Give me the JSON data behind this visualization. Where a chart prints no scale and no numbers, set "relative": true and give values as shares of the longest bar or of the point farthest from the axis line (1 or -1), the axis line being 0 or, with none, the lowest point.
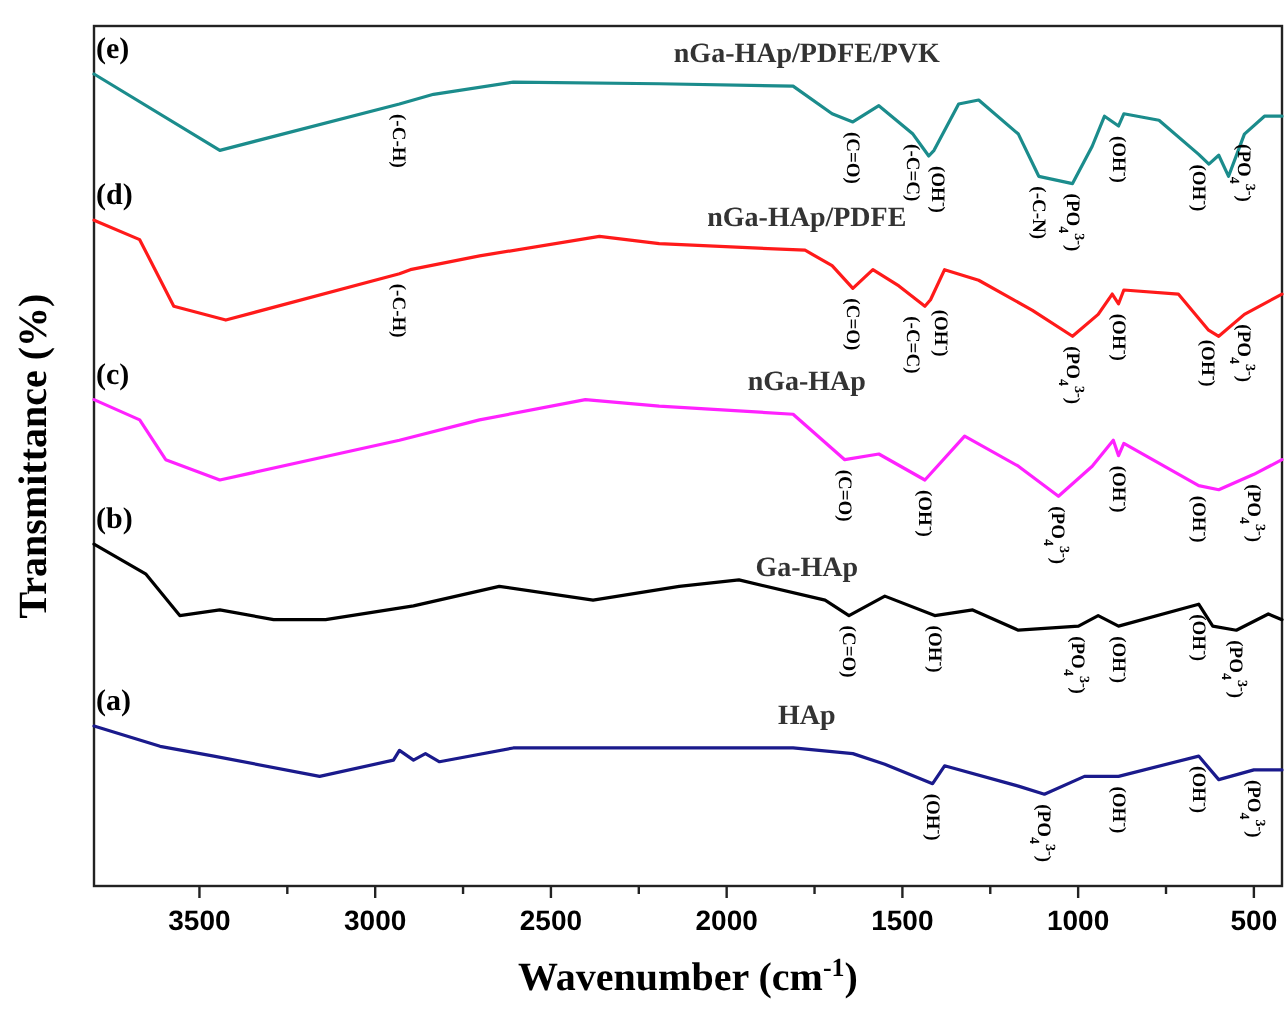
{
  "chart_data": {
    "type": "line",
    "relative": true,
    "xlabel": "Wavenumber (cm$^{-1}$)",
    "ylabel": "Transmittance (%)",
    "xlim": [
      3800,
      420
    ],
    "xticks": [
      3500,
      3000,
      2500,
      2000,
      1500,
      1000,
      500,
      {
        "value": 3250,
        "label": null
      },
      {
        "value": 2750,
        "label": null
      },
      {
        "value": 2250,
        "label": null
      },
      {
        "value": 1750,
        "label": null
      },
      {
        "value": 1250,
        "label": null
      },
      {
        "value": 750,
        "label": null
      }
    ],
    "grid": false,
    "legend": false,
    "marker": "none",
    "line_style": "solid",
    "series": [
      {
        "name": "nGa-HAp/PDFE/PVK",
        "color": "#1b8c8c",
        "x": [
          3800,
          3442,
          2931,
          2834,
          2607,
          2192,
          1811,
          1700,
          1641,
          1567,
          1470,
          1425,
          1410,
          1340,
          1283,
          1170,
          1112,
          1016,
          960,
          925,
          885,
          870,
          770,
          657,
          628,
          600,
          572,
          527,
          470,
          420
        ],
        "values": [
          1.0,
          0.906,
          0.963,
          0.975,
          0.99,
          0.988,
          0.985,
          0.951,
          0.941,
          0.961,
          0.926,
          0.899,
          0.906,
          0.963,
          0.968,
          0.926,
          0.874,
          0.865,
          0.911,
          0.948,
          0.936,
          0.951,
          0.943,
          0.901,
          0.889,
          0.9,
          0.874,
          0.926,
          0.948,
          0.948
        ]
      },
      {
        "name": "nGa-HAp/PDFE",
        "color": "#ff1a1a",
        "x": [
          3800,
          3670,
          3573,
          3425,
          2931,
          2900,
          2703,
          2362,
          2192,
          1777,
          1700,
          1641,
          1584,
          1510,
          1436,
          1420,
          1380,
          1283,
          1130,
          1016,
          943,
          903,
          885,
          870,
          715,
          630,
          600,
          527,
          420
        ],
        "values": [
          0.82,
          0.796,
          0.714,
          0.697,
          0.754,
          0.759,
          0.776,
          0.8,
          0.791,
          0.783,
          0.764,
          0.736,
          0.759,
          0.739,
          0.714,
          0.722,
          0.759,
          0.746,
          0.709,
          0.677,
          0.704,
          0.729,
          0.717,
          0.734,
          0.729,
          0.685,
          0.677,
          0.704,
          0.729
        ]
      },
      {
        "name": "nGa-HAp",
        "color": "#ff22ff",
        "x": [
          3800,
          3670,
          3596,
          3442,
          2931,
          2703,
          2402,
          2192,
          1811,
          1664,
          1567,
          1436,
          1323,
          1170,
          1056,
          960,
          900,
          885,
          870,
          657,
          600,
          500,
          420
        ],
        "values": [
          0.599,
          0.574,
          0.525,
          0.5,
          0.549,
          0.574,
          0.599,
          0.591,
          0.581,
          0.525,
          0.532,
          0.5,
          0.554,
          0.517,
          0.48,
          0.517,
          0.549,
          0.53,
          0.545,
          0.493,
          0.488,
          0.507,
          0.525
        ]
      },
      {
        "name": "Ga-HAp",
        "color": "#000000",
        "x": [
          3800,
          3652,
          3556,
          3442,
          3289,
          3141,
          2891,
          2647,
          2380,
          2135,
          1965,
          1720,
          1652,
          1550,
          1408,
          1300,
          1170,
          999,
          943,
          885,
          657,
          617,
          550,
          459,
          420
        ],
        "values": [
          0.421,
          0.384,
          0.333,
          0.34,
          0.328,
          0.328,
          0.345,
          0.369,
          0.352,
          0.369,
          0.377,
          0.352,
          0.333,
          0.357,
          0.333,
          0.34,
          0.315,
          0.32,
          0.333,
          0.32,
          0.347,
          0.32,
          0.315,
          0.335,
          0.328
        ]
      },
      {
        "name": "HAp",
        "color": "#1a1a8c",
        "x": [
          3800,
          3612,
          3459,
          3158,
          2948,
          2931,
          2891,
          2857,
          2817,
          2607,
          2135,
          1811,
          1641,
          1550,
          1414,
          1380,
          1170,
          1096,
          982,
          885,
          657,
          600,
          500,
          420
        ],
        "values": [
          0.197,
          0.172,
          0.16,
          0.135,
          0.155,
          0.167,
          0.155,
          0.163,
          0.153,
          0.17,
          0.17,
          0.17,
          0.163,
          0.15,
          0.126,
          0.148,
          0.123,
          0.113,
          0.135,
          0.135,
          0.16,
          0.131,
          0.143,
          0.143
        ]
      }
    ],
    "annotations": [
      {
        "text": "(e)",
        "x": 3800,
        "y": 1.0
      },
      {
        "text": "(d)",
        "x": 3800,
        "y": 0.82
      },
      {
        "text": "(c)",
        "x": 3800,
        "y": 0.599
      },
      {
        "text": "(b)",
        "x": 3800,
        "y": 0.421
      },
      {
        "text": "(a)",
        "x": 3800,
        "y": 0.197
      },
      {
        "text": "(-C-H)",
        "x": 2931,
        "y": 0.963
      },
      {
        "text": "(C=O)",
        "x": 1641,
        "y": 0.941
      },
      {
        "text": "(-C=C)",
        "x": 1470,
        "y": 0.926
      },
      {
        "text": "(OH$^{-}$)",
        "x": 1400,
        "y": 0.899
      },
      {
        "text": "(-C-N)",
        "x": 1112,
        "y": 0.874
      },
      {
        "text": "(PO$_{4}$$^{3-}$)",
        "x": 1016,
        "y": 0.865
      },
      {
        "text": "(OH$^{-}$)",
        "x": 885,
        "y": 0.936
      },
      {
        "text": "(OH$^{-}$)",
        "x": 657,
        "y": 0.901
      },
      {
        "text": "(PO$_{4}$$^{3-}$)",
        "x": 527,
        "y": 0.926
      },
      {
        "text": "(-C-H)",
        "x": 2931,
        "y": 0.754
      },
      {
        "text": "(C=O)",
        "x": 1641,
        "y": 0.736
      },
      {
        "text": "(-C=C)",
        "x": 1470,
        "y": 0.714
      },
      {
        "text": "(OH$^{-}$)",
        "x": 1390,
        "y": 0.722
      },
      {
        "text": "(PO$_{4}$$^{3-}$)",
        "x": 1016,
        "y": 0.677
      },
      {
        "text": "(OH$^{-}$)",
        "x": 885,
        "y": 0.717
      },
      {
        "text": "(OH$^{-}$)",
        "x": 630,
        "y": 0.685
      },
      {
        "text": "(PO$_{4}$$^{3-}$)",
        "x": 527,
        "y": 0.704
      },
      {
        "text": "(C=O)",
        "x": 1664,
        "y": 0.525
      },
      {
        "text": "(OH$^{-}$)",
        "x": 1436,
        "y": 0.5
      },
      {
        "text": "(PO$_{4}$$^{3-}$)",
        "x": 1056,
        "y": 0.48
      },
      {
        "text": "(OH$^{-}$)",
        "x": 885,
        "y": 0.53
      },
      {
        "text": "(OH$^{-}$)",
        "x": 657,
        "y": 0.493
      },
      {
        "text": "(PO$_{4}$$^{3-}$)",
        "x": 500,
        "y": 0.507
      },
      {
        "text": "(C=O)",
        "x": 1652,
        "y": 0.333
      },
      {
        "text": "(OH$^{-}$)",
        "x": 1408,
        "y": 0.333
      },
      {
        "text": "(PO$_{4}$$^{3-}$)",
        "x": 999,
        "y": 0.32
      },
      {
        "text": "(OH$^{-}$)",
        "x": 885,
        "y": 0.32
      },
      {
        "text": "(OH$^{-}$)",
        "x": 657,
        "y": 0.347
      },
      {
        "text": "(PO$_{4}$$^{3-}$)",
        "x": 550,
        "y": 0.315
      },
      {
        "text": "(OH$^{-}$)",
        "x": 1414,
        "y": 0.126
      },
      {
        "text": "(PO$_{4}$$^{3-}$)",
        "x": 1096,
        "y": 0.113
      },
      {
        "text": "(OH$^{-}$)",
        "x": 885,
        "y": 0.135
      },
      {
        "text": "(OH$^{-}$)",
        "x": 657,
        "y": 0.16
      },
      {
        "text": "(PO$_{4}$$^{3-}$)",
        "x": 500,
        "y": 0.143
      }
    ]
  }
}
